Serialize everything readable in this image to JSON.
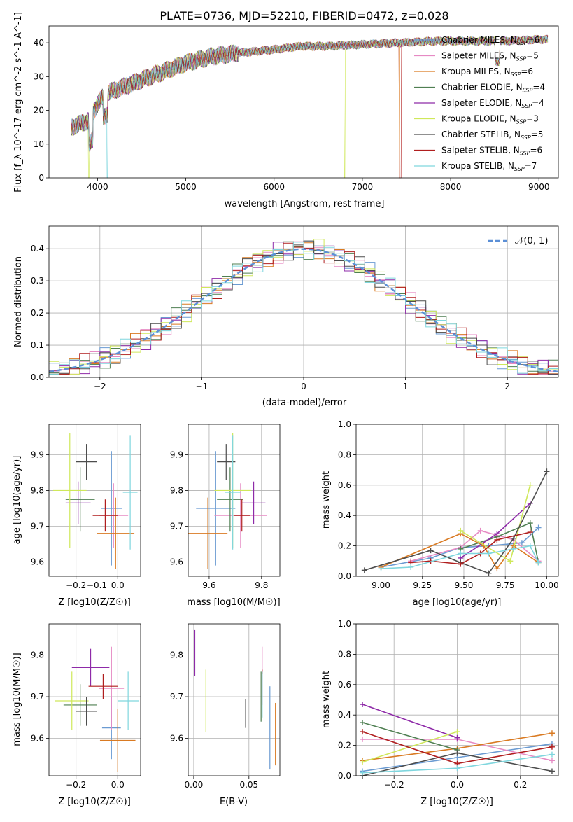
{
  "figure": {
    "title": "PLATE=0736, MJD=52210, FIBERID=0472, z=0.028"
  },
  "models": [
    {
      "name": "Chabrier MILES",
      "nssp": "6",
      "color": "#6b9bd2"
    },
    {
      "name": "Salpeter MILES",
      "nssp": "5",
      "color": "#e68ac4"
    },
    {
      "name": "Kroupa MILES",
      "nssp": "6",
      "color": "#d97a22"
    },
    {
      "name": "Chabrier ELODIE",
      "nssp": "4",
      "color": "#4f7f52"
    },
    {
      "name": "Salpeter ELODIE",
      "nssp": "4",
      "color": "#8e2aa8"
    },
    {
      "name": "Kroupa ELODIE",
      "nssp": "3",
      "color": "#cfe85a"
    },
    {
      "name": "Chabrier STELIB",
      "nssp": "5",
      "color": "#4d4d4d"
    },
    {
      "name": "Salpeter STELIB",
      "nssp": "6",
      "color": "#b01e1e"
    },
    {
      "name": "Kroupa STELIB",
      "nssp": "7",
      "color": "#7fd6de"
    }
  ],
  "chart_data": [
    {
      "id": "spectrum",
      "type": "line",
      "xlabel": "wavelength [Angstrom, rest frame]",
      "ylabel": "Flux [f_λ 10^-17 erg cm^-2 s^-1 A^-1]",
      "xlim": [
        3450,
        9220
      ],
      "ylim": [
        0,
        45
      ],
      "xticks": [
        4000,
        5000,
        6000,
        7000,
        8000,
        9000
      ],
      "yticks": [
        0,
        10,
        20,
        30,
        40
      ],
      "legend": "top-right",
      "continuum": {
        "x": [
          3700,
          3900,
          4000,
          4100,
          4300,
          4500,
          4700,
          5000,
          5300,
          5600,
          6000,
          6300,
          6600,
          7000,
          7400,
          7800,
          8200,
          8600,
          9000,
          9100
        ],
        "y": [
          15,
          17,
          22,
          25,
          27,
          29,
          31,
          34,
          36,
          37,
          38,
          39,
          39,
          39.5,
          40,
          40.5,
          40.5,
          40.5,
          41,
          41
        ]
      },
      "drops": [
        {
          "model": "Kroupa ELODIE",
          "x": 3900
        },
        {
          "model": "Kroupa STELIB",
          "x": 4110
        },
        {
          "model": "Kroupa ELODIE",
          "x": 6800
        },
        {
          "model": "Salpeter STELIB",
          "x": 7420
        },
        {
          "model": "Kroupa MILES",
          "x": 7420
        }
      ]
    },
    {
      "id": "residual-histogram",
      "type": "bar",
      "xlabel": "(data-model)/error",
      "ylabel": "Normed distribution",
      "xlim": [
        -2.5,
        2.5
      ],
      "ylim": [
        0,
        0.47
      ],
      "xticks": [
        -2,
        -1,
        0,
        1,
        2
      ],
      "yticks": [
        0.0,
        0.1,
        0.2,
        0.3,
        0.4
      ],
      "grid": true,
      "legend": "top-right",
      "reference_label": "𝒩(0, 1)",
      "reference_color": "#5b8fd6",
      "bin_width": 0.1
    },
    {
      "id": "age-vs-metallicity",
      "type": "scatter",
      "xlabel": "Z [log10(Z/Z☉)]",
      "ylabel": "age  [log10(age/yr)]",
      "xlim": [
        -0.33,
        0.11
      ],
      "ylim": [
        9.56,
        9.985
      ],
      "xticks": [
        -0.2,
        -0.1,
        0.0
      ],
      "yticks": [
        9.6,
        9.7,
        9.8,
        9.9
      ],
      "grid": true,
      "points": [
        {
          "model": "Chabrier MILES",
          "x": -0.03,
          "y": 9.75,
          "xerr": 0.05,
          "yerr": 0.16
        },
        {
          "model": "Salpeter MILES",
          "x": -0.02,
          "y": 9.73,
          "xerr": 0.07,
          "yerr": 0.09
        },
        {
          "model": "Kroupa MILES",
          "x": -0.01,
          "y": 9.68,
          "xerr": 0.09,
          "yerr": 0.1
        },
        {
          "model": "Chabrier ELODIE",
          "x": -0.18,
          "y": 9.775,
          "xerr": 0.07,
          "yerr": 0.09
        },
        {
          "model": "Salpeter ELODIE",
          "x": -0.19,
          "y": 9.765,
          "xerr": 0.06,
          "yerr": 0.06
        },
        {
          "model": "Kroupa ELODIE",
          "x": -0.23,
          "y": 9.8,
          "xerr": 0.08,
          "yerr": 0.16
        },
        {
          "model": "Chabrier STELIB",
          "x": -0.15,
          "y": 9.88,
          "xerr": 0.05,
          "yerr": 0.05
        },
        {
          "model": "Salpeter STELIB",
          "x": -0.06,
          "y": 9.73,
          "xerr": 0.06,
          "yerr": 0.045
        },
        {
          "model": "Kroupa STELIB",
          "x": 0.06,
          "y": 9.795,
          "xerr": 0.035,
          "yerr": 0.16
        }
      ]
    },
    {
      "id": "age-vs-mass",
      "type": "scatter",
      "xlabel": "mass [log10(M/M☉)]",
      "ylabel": "",
      "xlim": [
        9.52,
        9.87
      ],
      "ylim": [
        9.56,
        9.985
      ],
      "xticks": [
        9.6,
        9.8
      ],
      "yticks": [
        9.6,
        9.7,
        9.8,
        9.9
      ],
      "grid": true,
      "points": [
        {
          "model": "Chabrier MILES",
          "x": 9.625,
          "y": 9.75,
          "xerr": 0.075,
          "yerr": 0.16
        },
        {
          "model": "Salpeter MILES",
          "x": 9.72,
          "y": 9.73,
          "xerr": 0.1,
          "yerr": 0.09
        },
        {
          "model": "Kroupa MILES",
          "x": 9.595,
          "y": 9.68,
          "xerr": 0.075,
          "yerr": 0.1
        },
        {
          "model": "Chabrier ELODIE",
          "x": 9.68,
          "y": 9.775,
          "xerr": 0.05,
          "yerr": 0.09
        },
        {
          "model": "Salpeter ELODIE",
          "x": 9.77,
          "y": 9.765,
          "xerr": 0.045,
          "yerr": 0.06
        },
        {
          "model": "Kroupa ELODIE",
          "x": 9.69,
          "y": 9.8,
          "xerr": 0.07,
          "yerr": 0.16
        },
        {
          "model": "Chabrier STELIB",
          "x": 9.665,
          "y": 9.88,
          "xerr": 0.035,
          "yerr": 0.05
        },
        {
          "model": "Salpeter STELIB",
          "x": 9.725,
          "y": 9.73,
          "xerr": 0.03,
          "yerr": 0.045
        },
        {
          "model": "Kroupa STELIB",
          "x": 9.69,
          "y": 9.795,
          "xerr": 0.03,
          "yerr": 0.16
        }
      ]
    },
    {
      "id": "mass-weight-vs-age",
      "type": "line",
      "xlabel": "age  [log10(age/yr)]",
      "ylabel": "mass weight",
      "xlim": [
        8.85,
        10.07
      ],
      "ylim": [
        0,
        1
      ],
      "xticks": [
        9.0,
        9.25,
        9.5,
        9.75,
        10.0
      ],
      "yticks": [
        0.0,
        0.2,
        0.4,
        0.6,
        0.8,
        1.0
      ],
      "grid": true,
      "series": [
        {
          "model": "Chabrier MILES",
          "x": [
            9.0,
            9.3,
            9.48,
            9.65,
            9.85,
            9.95
          ],
          "y": [
            0.06,
            0.12,
            0.19,
            0.2,
            0.22,
            0.32
          ]
        },
        {
          "model": "Salpeter MILES",
          "x": [
            9.18,
            9.48,
            9.6,
            9.8,
            9.95
          ],
          "y": [
            0.1,
            0.19,
            0.3,
            0.24,
            0.1
          ]
        },
        {
          "model": "Kroupa MILES",
          "x": [
            9.0,
            9.48,
            9.62,
            9.7,
            9.8,
            9.95
          ],
          "y": [
            0.06,
            0.28,
            0.2,
            0.05,
            0.2,
            0.09
          ]
        },
        {
          "model": "Chabrier ELODIE",
          "x": [
            9.48,
            9.7,
            9.9,
            9.95
          ],
          "y": [
            0.18,
            0.26,
            0.35,
            0.09
          ]
        },
        {
          "model": "Salpeter ELODIE",
          "x": [
            9.48,
            9.7,
            9.9
          ],
          "y": [
            0.12,
            0.28,
            0.48
          ]
        },
        {
          "model": "Kroupa ELODIE",
          "x": [
            9.48,
            9.78,
            9.9
          ],
          "y": [
            0.3,
            0.1,
            0.6
          ]
        },
        {
          "model": "Chabrier STELIB",
          "x": [
            8.9,
            9.3,
            9.48,
            9.65,
            9.8,
            10.0
          ],
          "y": [
            0.04,
            0.17,
            0.09,
            0.02,
            0.25,
            0.69
          ]
        },
        {
          "model": "Salpeter STELIB",
          "x": [
            9.18,
            9.3,
            9.48,
            9.6,
            9.7,
            9.9
          ],
          "y": [
            0.09,
            0.1,
            0.08,
            0.15,
            0.24,
            0.29
          ]
        },
        {
          "model": "Kroupa STELIB",
          "x": [
            9.0,
            9.18,
            9.48,
            9.65,
            9.8,
            9.9,
            9.95
          ],
          "y": [
            0.05,
            0.06,
            0.15,
            0.15,
            0.18,
            0.2,
            0.09
          ]
        }
      ]
    },
    {
      "id": "mass-vs-metallicity",
      "type": "scatter",
      "xlabel": "Z [log10(Z/Z☉)]",
      "ylabel": "mass [log10(M/M☉)]",
      "xlim": [
        -0.33,
        0.11
      ],
      "ylim": [
        9.51,
        9.875
      ],
      "xticks": [
        -0.2,
        0.0
      ],
      "yticks": [
        9.6,
        9.7,
        9.8
      ],
      "grid": true,
      "points": [
        {
          "model": "Chabrier MILES",
          "x": -0.03,
          "y": 9.625,
          "xerr": 0.045,
          "yerr": 0.075
        },
        {
          "model": "Salpeter MILES",
          "x": -0.03,
          "y": 9.72,
          "xerr": 0.06,
          "yerr": 0.1
        },
        {
          "model": "Kroupa MILES",
          "x": 0.0,
          "y": 9.595,
          "xerr": 0.085,
          "yerr": 0.075
        },
        {
          "model": "Chabrier ELODIE",
          "x": -0.18,
          "y": 9.68,
          "xerr": 0.08,
          "yerr": 0.05
        },
        {
          "model": "Salpeter ELODIE",
          "x": -0.13,
          "y": 9.77,
          "xerr": 0.09,
          "yerr": 0.045
        },
        {
          "model": "Kroupa ELODIE",
          "x": -0.22,
          "y": 9.69,
          "xerr": 0.08,
          "yerr": 0.07
        },
        {
          "model": "Chabrier STELIB",
          "x": -0.15,
          "y": 9.665,
          "xerr": 0.05,
          "yerr": 0.035
        },
        {
          "model": "Salpeter STELIB",
          "x": -0.07,
          "y": 9.725,
          "xerr": 0.07,
          "yerr": 0.03
        },
        {
          "model": "Kroupa STELIB",
          "x": 0.05,
          "y": 9.69,
          "xerr": 0.05,
          "yerr": 0.07
        }
      ]
    },
    {
      "id": "mass-vs-ebv",
      "type": "scatter",
      "xlabel": "E(B-V)",
      "ylabel": "",
      "xlim": [
        -0.005,
        0.078
      ],
      "ylim": [
        9.51,
        9.875
      ],
      "xticks": [
        0.0,
        0.05
      ],
      "yticks": [
        9.6,
        9.7,
        9.8
      ],
      "grid": true,
      "points": [
        {
          "model": "Chabrier MILES",
          "x": 0.069,
          "y": 9.625,
          "yerr": 0.1
        },
        {
          "model": "Salpeter MILES",
          "x": 0.062,
          "y": 9.75,
          "yerr": 0.07
        },
        {
          "model": "Kroupa MILES",
          "x": 0.074,
          "y": 9.61,
          "yerr": 0.075
        },
        {
          "model": "Chabrier ELODIE",
          "x": 0.061,
          "y": 9.7,
          "yerr": 0.06
        },
        {
          "model": "Salpeter ELODIE",
          "x": 0.001,
          "y": 9.805,
          "yerr": 0.055
        },
        {
          "model": "Kroupa ELODIE",
          "x": 0.011,
          "y": 9.69,
          "yerr": 0.075
        },
        {
          "model": "Chabrier STELIB",
          "x": 0.047,
          "y": 9.66,
          "yerr": 0.035
        },
        {
          "model": "Salpeter STELIB",
          "x": 0.062,
          "y": 9.76,
          "yerr": 0.005
        },
        {
          "model": "Kroupa STELIB",
          "x": 0.062,
          "y": 9.705,
          "yerr": 0.055
        }
      ]
    },
    {
      "id": "mass-weight-vs-metallicity",
      "type": "line",
      "xlabel": "Z [log10(Z/Z☉)]",
      "ylabel": "mass weight",
      "xlim": [
        -0.32,
        0.32
      ],
      "ylim": [
        0,
        1
      ],
      "xticks": [
        -0.2,
        0.0,
        0.2
      ],
      "yticks": [
        0.0,
        0.2,
        0.4,
        0.6,
        0.8,
        1.0
      ],
      "grid": true,
      "series": [
        {
          "model": "Chabrier MILES",
          "x": [
            -0.3,
            0.0,
            0.3
          ],
          "y": [
            0.03,
            0.12,
            0.21
          ]
        },
        {
          "model": "Salpeter MILES",
          "x": [
            -0.3,
            0.0,
            0.3
          ],
          "y": [
            0.24,
            0.24,
            0.1
          ]
        },
        {
          "model": "Kroupa MILES",
          "x": [
            -0.3,
            0.0,
            0.3
          ],
          "y": [
            0.1,
            0.18,
            0.28
          ]
        },
        {
          "model": "Chabrier ELODIE",
          "x": [
            -0.3,
            0.0
          ],
          "y": [
            0.35,
            0.17
          ]
        },
        {
          "model": "Salpeter ELODIE",
          "x": [
            -0.3,
            0.0
          ],
          "y": [
            0.47,
            0.25
          ]
        },
        {
          "model": "Kroupa ELODIE",
          "x": [
            -0.3,
            0.0
          ],
          "y": [
            0.09,
            0.29
          ]
        },
        {
          "model": "Chabrier STELIB",
          "x": [
            -0.3,
            0.0,
            0.3
          ],
          "y": [
            0.0,
            0.15,
            0.03
          ]
        },
        {
          "model": "Salpeter STELIB",
          "x": [
            -0.3,
            0.0,
            0.3
          ],
          "y": [
            0.29,
            0.08,
            0.19
          ]
        },
        {
          "model": "Kroupa STELIB",
          "x": [
            -0.3,
            0.0,
            0.3
          ],
          "y": [
            0.02,
            0.05,
            0.14
          ]
        }
      ]
    }
  ]
}
